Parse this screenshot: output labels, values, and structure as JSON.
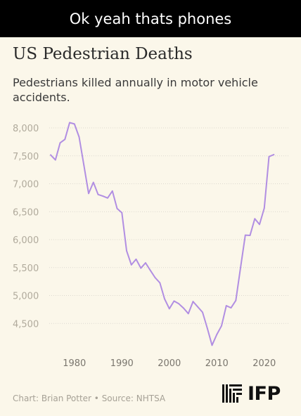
{
  "caption": "Ok yeah thats phones",
  "logo": {
    "text": "IFP",
    "icon": "ifp-bars-icon"
  },
  "footer": {
    "credit": "Chart: Brian Potter • Source: NHTSA"
  },
  "colors": {
    "background": "#fbf7ea",
    "line": "#b18ee2",
    "grid": "#ddd9cf",
    "caption_bar": "#000000"
  },
  "chart_data": {
    "type": "line",
    "title": "US Pedestrian Deaths",
    "subtitle": "Pedestrians killed annually in motor vehicle accidents.",
    "xlabel": "",
    "ylabel": "",
    "xlim": [
      1975,
      2023
    ],
    "ylim": [
      4000,
      8000
    ],
    "yticks": [
      4500,
      5000,
      5500,
      6000,
      6500,
      7000,
      7500,
      8000
    ],
    "ytick_labels": [
      "4,500",
      "5,000",
      "5,500",
      "6,000",
      "6,500",
      "7,000",
      "7,500",
      "8,000"
    ],
    "xticks": [
      1980,
      1990,
      2000,
      2010,
      2020
    ],
    "xtick_labels": [
      "1980",
      "1990",
      "2000",
      "2010",
      "2020"
    ],
    "grid": true,
    "series": [
      {
        "x": [
          1975,
          1976,
          1977,
          1978,
          1979,
          1980,
          1981,
          1982,
          1983,
          1984,
          1985,
          1986,
          1987,
          1988,
          1989,
          1990,
          1991,
          1992,
          1993,
          1994,
          1995,
          1996,
          1997,
          1998,
          1999,
          2000,
          2001,
          2002,
          2003,
          2004,
          2005,
          2006,
          2007,
          2008,
          2009,
          2010,
          2011,
          2012,
          2013,
          2014,
          2015,
          2016,
          2017,
          2018,
          2019,
          2020,
          2021,
          2022
        ],
        "y": [
          7516,
          7427,
          7732,
          7795,
          8094,
          8070,
          7837,
          7331,
          6826,
          7025,
          6808,
          6779,
          6745,
          6870,
          6556,
          6482,
          5801,
          5549,
          5649,
          5489,
          5584,
          5449,
          5321,
          5228,
          4939,
          4763,
          4901,
          4851,
          4774,
          4675,
          4892,
          4795,
          4699,
          4414,
          4109,
          4302,
          4457,
          4818,
          4779,
          4910,
          5494,
          6080,
          6075,
          6374,
          6272,
          6565,
          7485,
          7522
        ]
      }
    ]
  }
}
